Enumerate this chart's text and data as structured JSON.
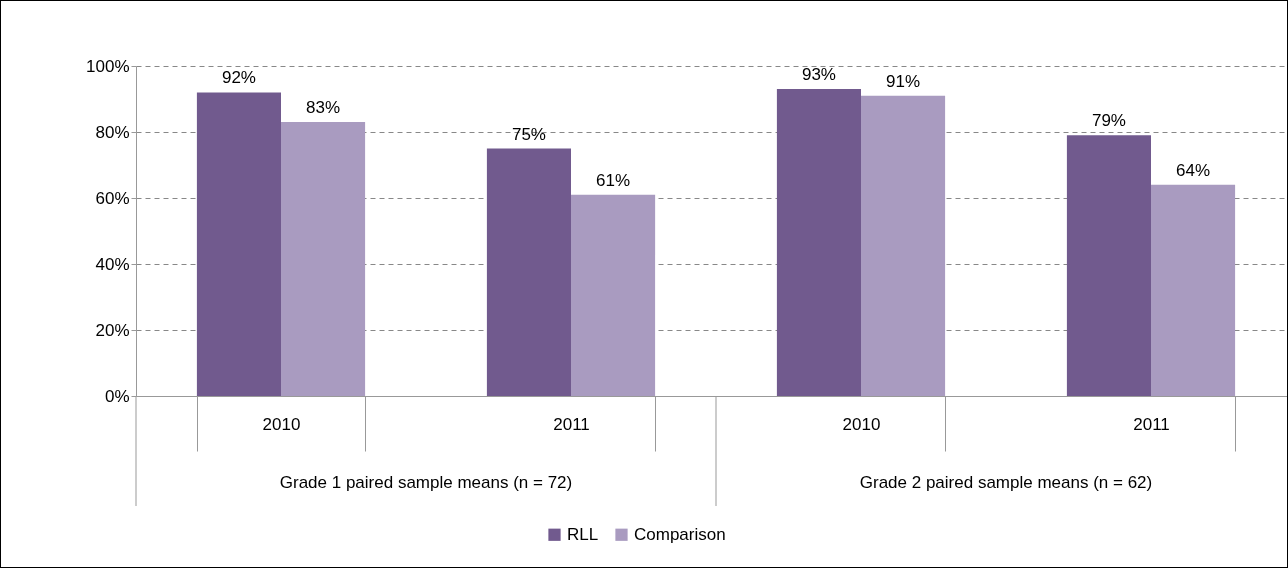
{
  "chart_data": {
    "type": "bar",
    "categories": [
      "2010",
      "2011",
      "2010",
      "2011"
    ],
    "series": [
      {
        "name": "RLL",
        "color": "#715a8e",
        "values": [
          92,
          75,
          93,
          79
        ],
        "value_labels": [
          "92%",
          "75%",
          "93%",
          "79%"
        ]
      },
      {
        "name": "Comparison",
        "color": "#a99bc0",
        "values": [
          83,
          61,
          91,
          64
        ],
        "value_labels": [
          "83%",
          "61%",
          "91%",
          "64%"
        ]
      }
    ],
    "ylim": [
      0,
      100
    ],
    "yticks": [
      {
        "value": 0,
        "label": "0%"
      },
      {
        "value": 20,
        "label": "20%"
      },
      {
        "value": 40,
        "label": "40%"
      },
      {
        "value": 60,
        "label": "60%"
      },
      {
        "value": 80,
        "label": "80%"
      },
      {
        "value": 100,
        "label": "100%"
      }
    ],
    "annotations": [
      "Grade 1 paired sample means (n = 72)",
      "Grade 2 paired sample means (n = 62)"
    ],
    "grid": "y",
    "legend": "bottom"
  }
}
